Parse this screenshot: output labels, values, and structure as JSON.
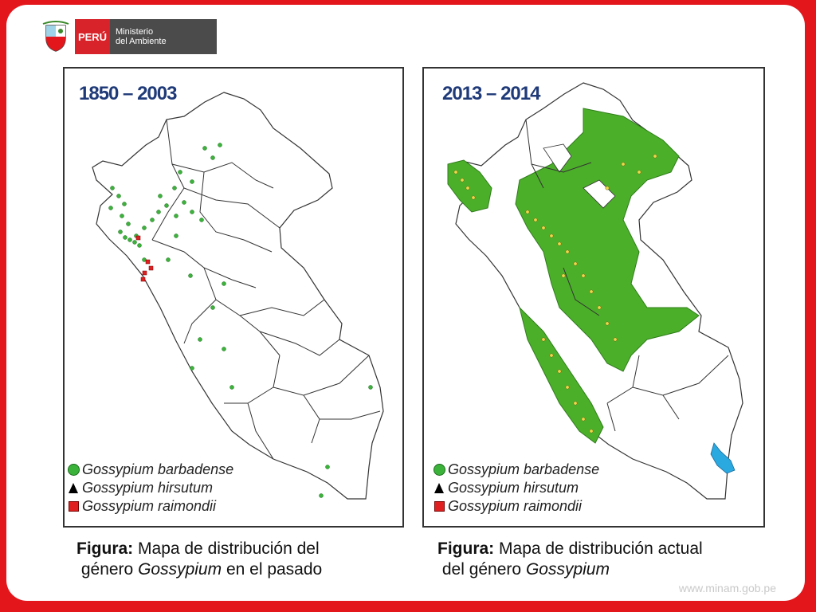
{
  "header": {
    "country": "PERÚ",
    "ministry_line1": "Ministerio",
    "ministry_line2": "del Ambiente"
  },
  "panels": [
    {
      "period": "1850 – 2003"
    },
    {
      "period": "2013 – 2014"
    }
  ],
  "legend": {
    "items": [
      {
        "label": "Gossypium barbadense",
        "marker": "green-circle",
        "color": "#3bb33b"
      },
      {
        "label": "Gossypium hirsutum",
        "marker": "black-triangle",
        "color": "#000000"
      },
      {
        "label": "Gossypium raimondii",
        "marker": "red-square",
        "color": "#e02020"
      }
    ]
  },
  "captions": [
    {
      "prefix": "Figura:",
      "line1": "Mapa de distribución del",
      "line2_pre": "género ",
      "line2_italic": "Gossypium",
      "line2_post": " en el pasado"
    },
    {
      "prefix": "Figura:",
      "line1": "Mapa de distribución actual",
      "line2_pre": "del género ",
      "line2_italic": "Gossypium",
      "line2_post": ""
    }
  ],
  "footer": {
    "url": "www.minam.gob.pe"
  }
}
